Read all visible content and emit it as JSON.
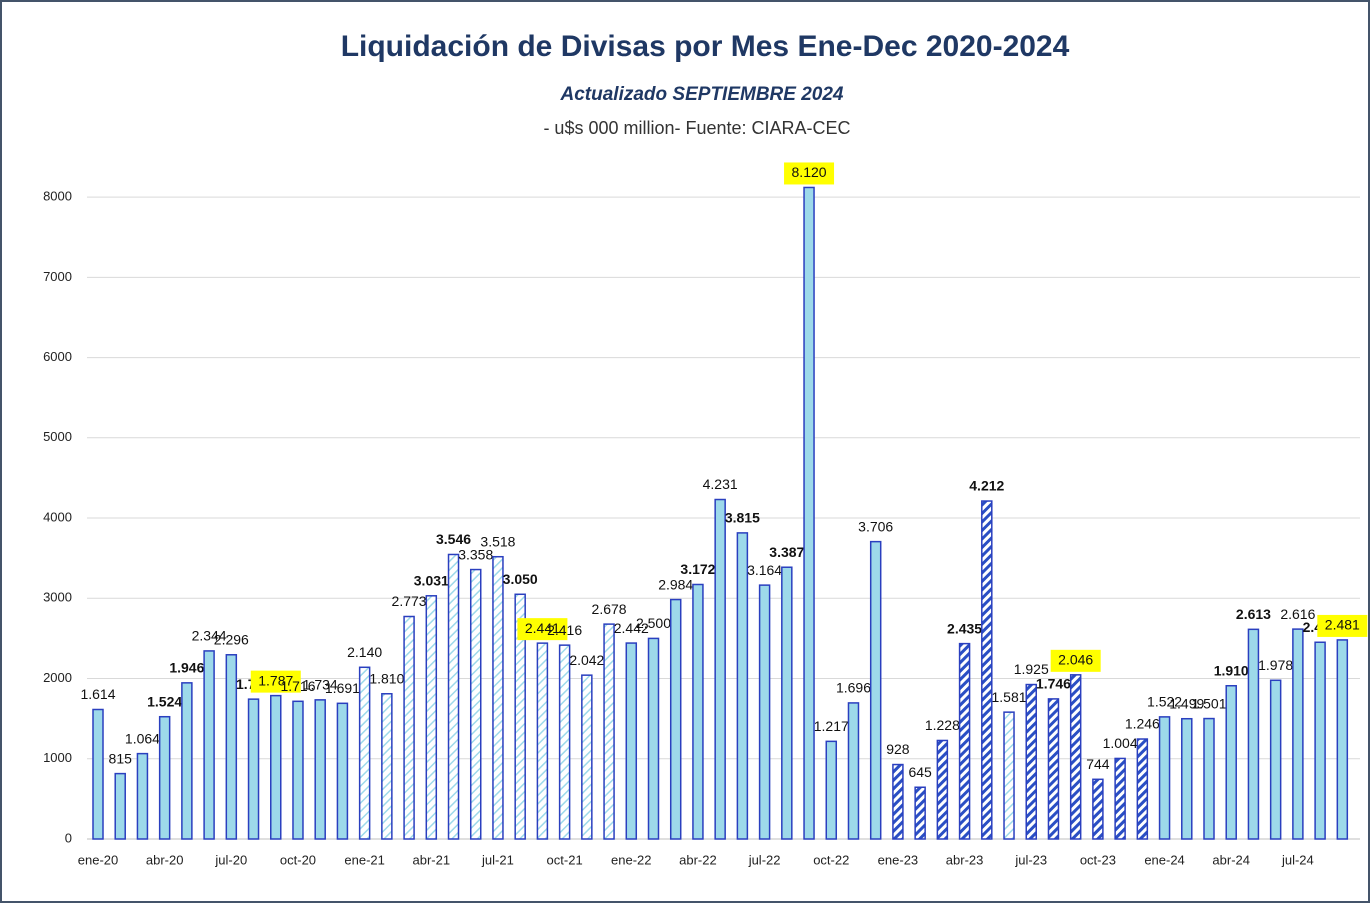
{
  "chart_data": {
    "type": "bar",
    "title": "Liquidación de  Divisas por Mes Ene-Dec 2020-2024",
    "subtitle": "Actualizado SEPTIEMBRE 2024",
    "note": "- u$s 000 million- Fuente: CIARA-CEC",
    "categories": [
      "ene-20",
      null,
      null,
      "abr-20",
      null,
      null,
      "jul-20",
      null,
      null,
      "oct-20",
      null,
      null,
      "ene-21",
      null,
      null,
      "abr-21",
      null,
      null,
      "jul-21",
      null,
      null,
      "oct-21",
      null,
      null,
      "ene-22",
      null,
      null,
      "abr-22",
      null,
      null,
      "jul-22",
      null,
      null,
      "oct-22",
      null,
      null,
      "ene-23",
      null,
      null,
      "abr-23",
      null,
      null,
      "jul-23",
      null,
      null,
      "oct-23",
      null,
      null,
      "ene-24",
      null,
      null,
      "abr-24",
      null,
      null,
      "jul-24",
      null,
      null
    ],
    "values": [
      1614,
      815,
      1064,
      1524,
      1946,
      2344,
      2296,
      1743,
      1787,
      1716,
      1734,
      1691,
      2140,
      1810,
      2773,
      3031,
      3546,
      3358,
      3518,
      3050,
      2441,
      2416,
      2042,
      2678,
      2442,
      2500,
      2984,
      3172,
      4231,
      3815,
      3164,
      3387,
      8120,
      1217,
      1696,
      3706,
      928,
      645,
      1228,
      2435,
      4212,
      1581,
      1925,
      1746,
      2046,
      744,
      1004,
      1246,
      1522,
      1499,
      1501,
      1910,
      2613,
      1978,
      2616,
      2452,
      2481
    ],
    "value_labels": [
      "1.614",
      "815",
      "1.064",
      "1.524",
      "1.946",
      "2.344",
      "2.296",
      "1.743",
      "1.787",
      "1.716",
      "1.734",
      "1.691",
      "2.140",
      "1.810",
      "2.773",
      "3.031",
      "3.546",
      "3.358",
      "3.518",
      "3.050",
      "2.441",
      "2.416",
      "2.042",
      "2.678",
      "2.442",
      "2.500",
      "2.984",
      "3.172",
      "4.231",
      "3.815",
      "3.164",
      "3.387",
      "8.120",
      "1.217",
      "1.696",
      "3.706",
      "928",
      "645",
      "1.228",
      "2.435",
      "4.212",
      "1.581",
      "1.925",
      "1.746",
      "2.046",
      "744",
      "1.004",
      "1.246",
      "1.522",
      "1.499",
      "1.501",
      "1.910",
      "2.613",
      "1.978",
      "2.616",
      "2.452",
      "2.481"
    ],
    "color": "#9dd9ea",
    "ylim": [
      0,
      8400
    ],
    "yticks": [
      0,
      1000,
      2000,
      3000,
      4000,
      5000,
      6000,
      7000,
      8000
    ],
    "grid": true
  }
}
